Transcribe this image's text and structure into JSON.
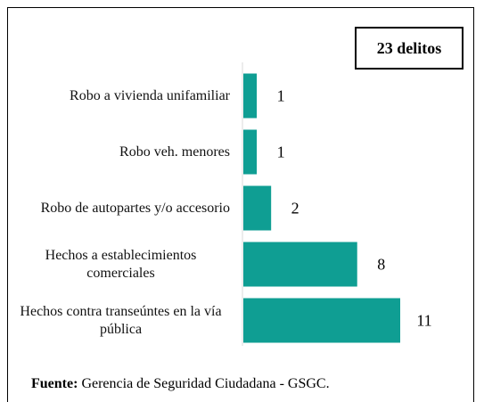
{
  "chart_data": {
    "type": "bar",
    "orientation": "horizontal",
    "color": "#0f9e93",
    "annotation": "23 delitos",
    "categories": [
      "Robo a vivienda unifamiliar",
      "Robo veh. menores",
      "Robo de autopartes y/o accesorio",
      "Hechos a establecimientos comerciales",
      "Hechos contra transeúntes en la vía pública"
    ],
    "values": [
      1,
      1,
      2,
      8,
      11
    ],
    "source_label": "Fuente:",
    "source": "Gerencia de Seguridad Ciudadana - GSGC."
  }
}
